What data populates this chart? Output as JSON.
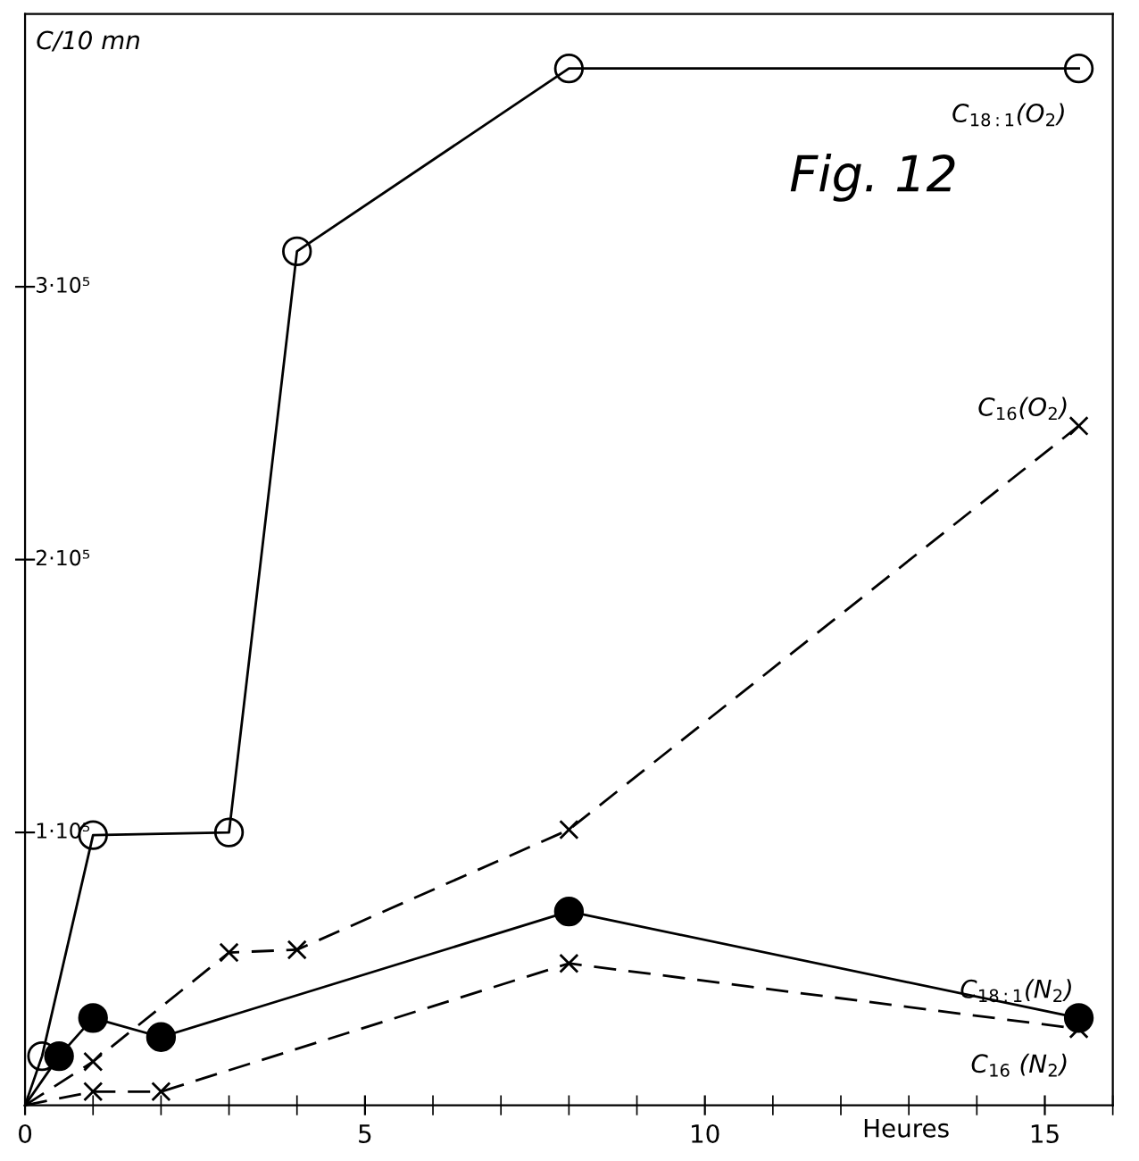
{
  "chart_data": {
    "type": "line",
    "title": "Fig. 12",
    "xlabel": "Heures",
    "ylabel": "C/10 mn",
    "xlim": [
      0,
      16
    ],
    "ylim": [
      0,
      400000
    ],
    "xticks": [
      0,
      5,
      10,
      15
    ],
    "yticks": [
      {
        "value": 100000,
        "label": "1·10⁵"
      },
      {
        "value": 200000,
        "label": "2·10⁵"
      },
      {
        "value": 300000,
        "label": "3·10⁵"
      }
    ],
    "grid": false,
    "series": [
      {
        "name": "C$_{18:1}$(O$_{2}$)",
        "color": "#000000",
        "marker": "circle",
        "line_style": "solid",
        "x": [
          0,
          0.25,
          1,
          3,
          4,
          8,
          15.5
        ],
        "values": [
          0,
          18000,
          99000,
          100000,
          313000,
          380000,
          380000
        ]
      },
      {
        "name": "C$_{16}$(O$_{2}$)",
        "color": "#000000",
        "marker": "cross",
        "line_style": "dashed",
        "x": [
          0,
          1,
          3,
          4,
          8,
          15.5
        ],
        "values": [
          0,
          16000,
          56000,
          57000,
          101000,
          249000
        ]
      },
      {
        "name": "C$_{18:1}$(N$_{2}$)",
        "color": "#000000",
        "marker": "circle",
        "line_style": "solid",
        "x": [
          0,
          0.5,
          1,
          2,
          8,
          15.5
        ],
        "values": [
          0,
          18000,
          32000,
          25000,
          71000,
          32000
        ]
      },
      {
        "name": "C$_{16}$ (N$_{2}$)",
        "color": "#000000",
        "marker": "cross",
        "line_style": "dashed",
        "x": [
          0,
          1,
          2,
          8,
          15.5
        ],
        "values": [
          0,
          5000,
          5000,
          52000,
          28000
        ]
      }
    ]
  }
}
